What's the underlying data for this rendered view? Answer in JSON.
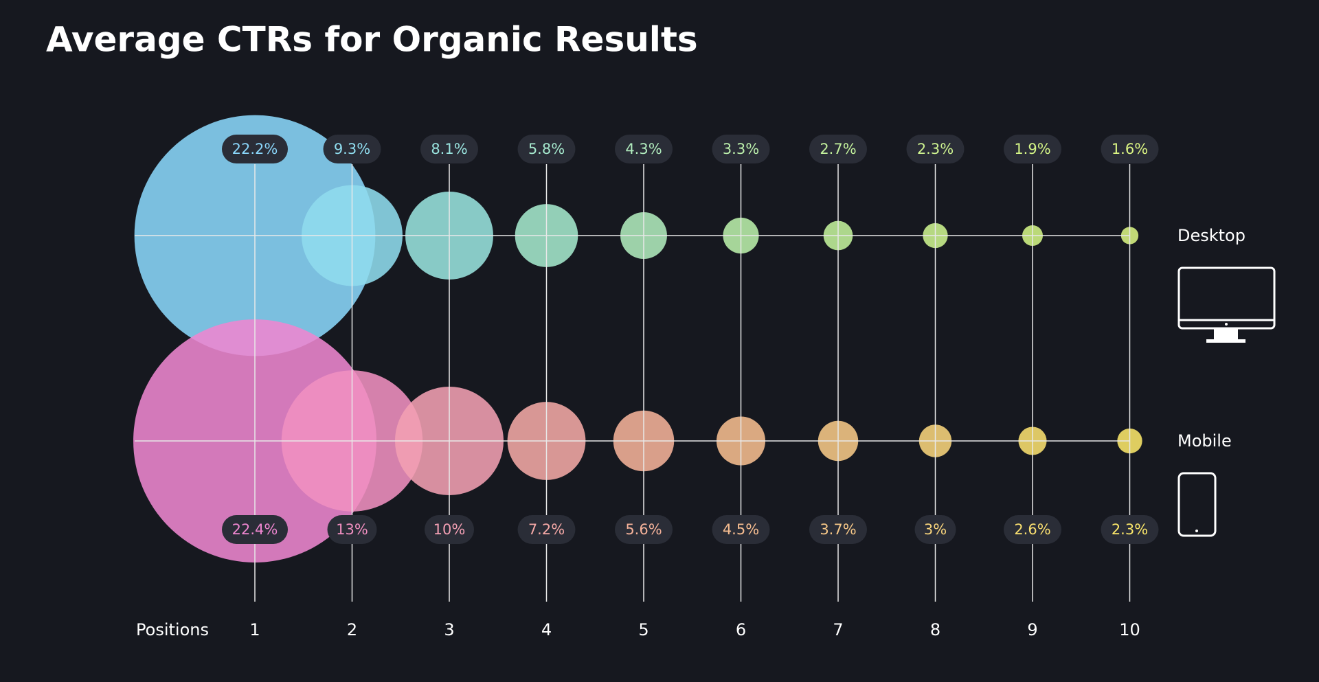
{
  "chart_data": {
    "type": "bubble",
    "title": "Average CTRs for Organic Results",
    "x_label": "Positions",
    "categories": [
      "1",
      "2",
      "3",
      "4",
      "5",
      "6",
      "7",
      "8",
      "9",
      "10"
    ],
    "series": [
      {
        "name": "Desktop",
        "values": [
          22.2,
          9.3,
          8.1,
          5.8,
          4.3,
          3.3,
          2.7,
          2.3,
          1.9,
          1.6
        ],
        "value_labels": [
          "22.2%",
          "9.3%",
          "8.1%",
          "5.8%",
          "4.3%",
          "3.3%",
          "2.7%",
          "2.3%",
          "1.9%",
          "1.6%"
        ],
        "colors": [
          "#8ad6fa",
          "#8fdcee",
          "#99e3de",
          "#a5e8cd",
          "#b0ebbd",
          "#bbefab",
          "#c3f19c",
          "#cdf290",
          "#d3f486",
          "#daf483"
        ]
      },
      {
        "name": "Mobile",
        "values": [
          22.4,
          13,
          10,
          7.2,
          5.6,
          4.5,
          3.7,
          3,
          2.6,
          2.3
        ],
        "value_labels": [
          "22.4%",
          "13%",
          "10%",
          "7.2%",
          "5.6%",
          "4.5%",
          "3.7%",
          "3%",
          "2.6%",
          "2.3%"
        ],
        "colors": [
          "#ee86d0",
          "#f08fc0",
          "#f29fb3",
          "#f4a8a6",
          "#f5b29a",
          "#f6bd90",
          "#f7c888",
          "#f8d47c",
          "#f9df70",
          "#fae66a"
        ]
      }
    ]
  }
}
